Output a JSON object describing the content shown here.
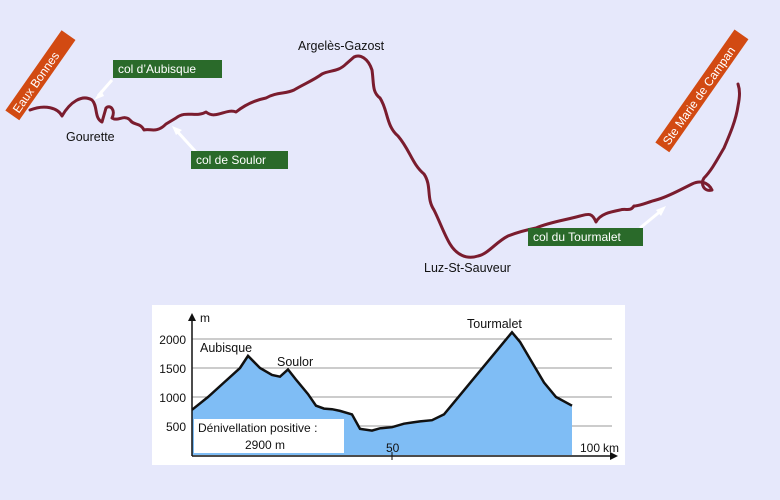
{
  "map": {
    "route_color": "#7a1c2e",
    "green_label_color": "#2a6a2a",
    "orange_label_color": "#d24a12",
    "places": {
      "eaux_bonnes": "Eaux Bonnes",
      "gourette": "Gourette",
      "argeles": "Argelès-Gazost",
      "luz": "Luz-St-Sauveur",
      "ste_marie": "Ste Marie de Campan"
    },
    "passes": {
      "aubisque": "col d’Aubisque",
      "soulor": "col de Soulor",
      "tourmalet": "col du Tourmalet"
    }
  },
  "profile": {
    "fill_color": "#7fbdf5",
    "y_unit": "m",
    "y_ticks": [
      "2000",
      "1500",
      "1000",
      "500"
    ],
    "x_tick_mid": "50",
    "x_tick_end": "100",
    "x_unit": "km",
    "peak_labels": {
      "aubisque": "Aubisque",
      "soulor": "Soulor",
      "tourmalet": "Tourmalet"
    },
    "note_line1": "Dénivellation positive :",
    "note_line2": "2900 m"
  },
  "chart_data": {
    "type": "area",
    "xlabel": "km",
    "ylabel": "m",
    "xlim": [
      0,
      100
    ],
    "ylim": [
      0,
      2200
    ],
    "x": [
      0,
      4,
      8,
      12,
      14,
      17,
      20,
      22,
      24,
      26,
      29,
      31,
      33,
      35,
      37,
      40,
      42,
      45,
      47,
      50,
      53,
      55,
      57,
      60,
      63,
      66,
      69,
      72,
      75,
      78,
      80,
      82,
      85,
      88,
      91,
      95
    ],
    "values": [
      780,
      1000,
      1250,
      1500,
      1709,
      1500,
      1380,
      1350,
      1474,
      1300,
      1050,
      850,
      800,
      790,
      760,
      700,
      450,
      420,
      460,
      480,
      540,
      560,
      580,
      600,
      700,
      950,
      1200,
      1450,
      1700,
      1950,
      2115,
      1950,
      1600,
      1250,
      1000,
      850
    ],
    "annotations": [
      "Aubisque",
      "Soulor",
      "Tourmalet",
      "Dénivellation positive :",
      "2900 m"
    ]
  }
}
